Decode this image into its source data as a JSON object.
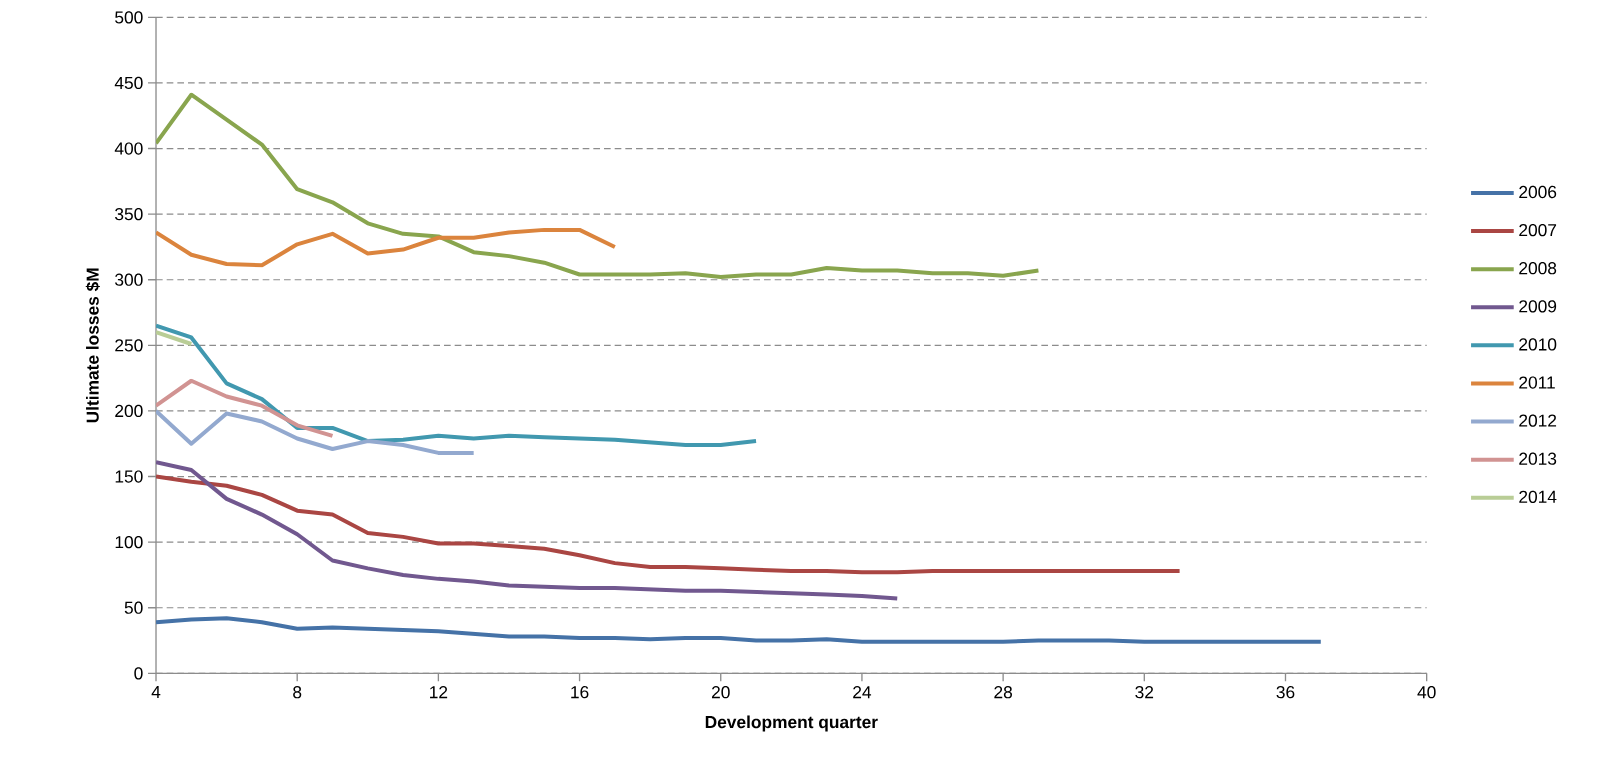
{
  "chart_data": {
    "type": "line",
    "xlabel": "Development quarter",
    "ylabel": "Ultimate losses $M",
    "xlim": [
      4,
      40
    ],
    "xticks": [
      4,
      8,
      12,
      16,
      20,
      24,
      28,
      32,
      36,
      40
    ],
    "ylim": [
      0,
      500
    ],
    "yticks": [
      0,
      50,
      100,
      150,
      200,
      250,
      300,
      350,
      400,
      450,
      500
    ],
    "grid": "y",
    "legend": "right",
    "marker": "none",
    "line_style": "solid",
    "series": [
      {
        "name": "2006",
        "color": "#4572a7",
        "x": [
          4,
          5,
          6,
          7,
          8,
          9,
          10,
          11,
          12,
          13,
          14,
          15,
          16,
          17,
          18,
          19,
          20,
          21,
          22,
          23,
          24,
          25,
          26,
          27,
          28,
          29,
          30,
          31,
          32,
          33,
          34,
          35,
          36,
          37
        ],
        "values": [
          39,
          41,
          42,
          39,
          34,
          35,
          34,
          33,
          32,
          30,
          28,
          28,
          27,
          27,
          26,
          27,
          27,
          25,
          25,
          26,
          24,
          24,
          24,
          24,
          24,
          25,
          25,
          25,
          24,
          24,
          24,
          24,
          24,
          24
        ]
      },
      {
        "name": "2007",
        "color": "#aa4643",
        "x": [
          4,
          5,
          6,
          7,
          8,
          9,
          10,
          11,
          12,
          13,
          14,
          15,
          16,
          17,
          18,
          19,
          20,
          21,
          22,
          23,
          24,
          25,
          26,
          27,
          28,
          29,
          30,
          31,
          32,
          33
        ],
        "values": [
          150,
          146,
          143,
          136,
          124,
          121,
          107,
          104,
          99,
          99,
          97,
          95,
          90,
          84,
          81,
          81,
          80,
          79,
          78,
          78,
          77,
          77,
          78,
          78,
          78,
          78,
          78,
          78,
          78,
          78
        ]
      },
      {
        "name": "2008",
        "color": "#89a54e",
        "x": [
          4,
          5,
          6,
          7,
          8,
          9,
          10,
          11,
          12,
          13,
          14,
          15,
          16,
          17,
          18,
          19,
          20,
          21,
          22,
          23,
          24,
          25,
          26,
          27,
          28,
          29
        ],
        "values": [
          404,
          441,
          422,
          403,
          369,
          359,
          343,
          335,
          333,
          321,
          318,
          313,
          304,
          304,
          304,
          305,
          302,
          304,
          304,
          309,
          307,
          307,
          305,
          305,
          303,
          307
        ]
      },
      {
        "name": "2009",
        "color": "#71588f",
        "x": [
          4,
          5,
          6,
          7,
          8,
          9,
          10,
          11,
          12,
          13,
          14,
          15,
          16,
          17,
          18,
          19,
          20,
          21,
          22,
          23,
          24,
          25
        ],
        "values": [
          161,
          155,
          133,
          121,
          106,
          86,
          80,
          75,
          72,
          70,
          67,
          66,
          65,
          65,
          64,
          63,
          63,
          62,
          61,
          60,
          59,
          57
        ]
      },
      {
        "name": "2010",
        "color": "#4198af",
        "x": [
          4,
          5,
          6,
          7,
          8,
          9,
          10,
          11,
          12,
          13,
          14,
          15,
          16,
          17,
          18,
          19,
          20,
          21
        ],
        "values": [
          265,
          256,
          221,
          209,
          187,
          187,
          177,
          178,
          181,
          179,
          181,
          180,
          179,
          178,
          176,
          174,
          174,
          177
        ]
      },
      {
        "name": "2011",
        "color": "#db843d",
        "x": [
          4,
          5,
          6,
          7,
          8,
          9,
          10,
          11,
          12,
          13,
          14,
          15,
          16,
          17
        ],
        "values": [
          336,
          319,
          312,
          311,
          327,
          335,
          320,
          323,
          332,
          332,
          336,
          338,
          338,
          325
        ]
      },
      {
        "name": "2012",
        "color": "#93a9cf",
        "x": [
          4,
          5,
          6,
          7,
          8,
          9,
          10,
          11,
          12,
          13
        ],
        "values": [
          200,
          175,
          198,
          192,
          179,
          171,
          177,
          174,
          168,
          168
        ]
      },
      {
        "name": "2013",
        "color": "#d19392",
        "x": [
          4,
          5,
          6,
          7,
          8,
          9
        ],
        "values": [
          204,
          223,
          211,
          204,
          189,
          181
        ]
      },
      {
        "name": "2014",
        "color": "#b9cd96",
        "x": [
          4,
          5
        ],
        "values": [
          260,
          251
        ]
      }
    ]
  }
}
